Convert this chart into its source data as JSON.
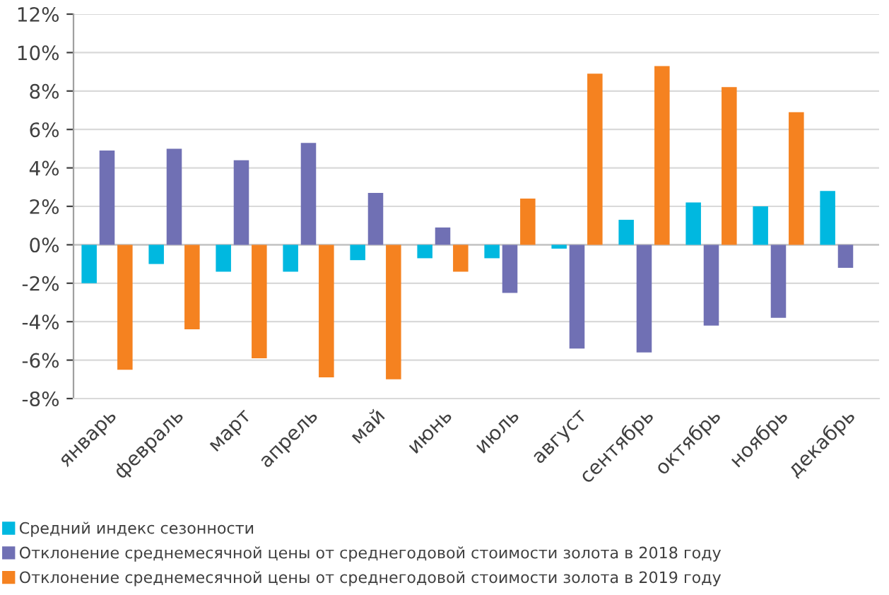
{
  "chart_data": {
    "type": "bar",
    "categories": [
      "январь",
      "февраль",
      "март",
      "апрель",
      "май",
      "июнь",
      "июль",
      "август",
      "сентябрь",
      "октябрь",
      "ноябрь",
      "декабрь"
    ],
    "series": [
      {
        "name": "Средний индекс сезонности",
        "color": "#00b8e0",
        "values": [
          -2.0,
          -1.0,
          -1.4,
          -1.4,
          -0.8,
          -0.7,
          -0.7,
          -0.2,
          1.3,
          2.2,
          2.0,
          2.8
        ]
      },
      {
        "name": "Отклонение среднемесячной цены от среднегодовой стоимости золота в 2018 году",
        "color": "#7070b4",
        "values": [
          4.9,
          5.0,
          4.4,
          5.3,
          2.7,
          0.9,
          -2.5,
          -5.4,
          -5.6,
          -4.2,
          -3.8,
          -1.2
        ]
      },
      {
        "name": "Отклонение среднемесячной цены от среднегодовой стоимости золота в 2019 году",
        "color": "#f58220",
        "values": [
          -6.5,
          -4.4,
          -5.9,
          -6.9,
          -7.0,
          -1.4,
          2.4,
          8.9,
          9.3,
          8.2,
          6.9,
          null
        ]
      }
    ],
    "ylim": [
      -8,
      12
    ],
    "yticks": [
      {
        "value": -8,
        "label": "-8%"
      },
      {
        "value": -6,
        "label": "-6%"
      },
      {
        "value": -4,
        "label": "-4%"
      },
      {
        "value": -2,
        "label": "-2%"
      },
      {
        "value": 0,
        "label": "0%"
      },
      {
        "value": 2,
        "label": "2%"
      },
      {
        "value": 4,
        "label": "4%"
      },
      {
        "value": 6,
        "label": "6%"
      },
      {
        "value": 8,
        "label": "8%"
      },
      {
        "value": 10,
        "label": "10%"
      },
      {
        "value": 12,
        "label": "12%"
      }
    ],
    "grid": "y",
    "legend": "bottom"
  }
}
